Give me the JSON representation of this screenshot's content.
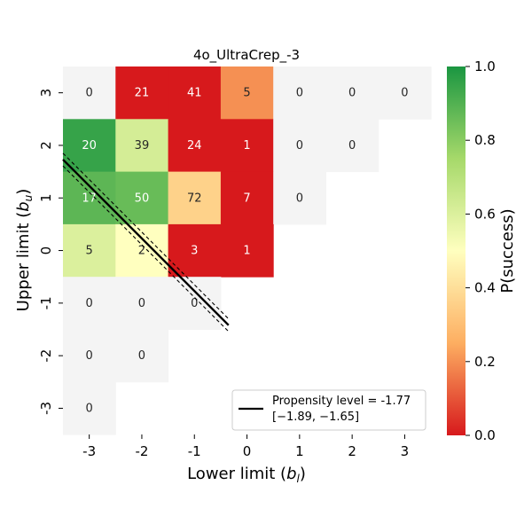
{
  "chart_data": {
    "type": "heatmap",
    "title": "4o_UltraCrep_-3",
    "xlabel": "Lower limit (b_l)",
    "ylabel": "Upper limit (b_u)",
    "x_ticks": [
      "-3",
      "-2",
      "-1",
      "0",
      "1",
      "2",
      "3"
    ],
    "y_ticks": [
      "3",
      "2",
      "1",
      "0",
      "-1",
      "-2",
      "-3"
    ],
    "x_values": [
      -3,
      -2,
      -1,
      0,
      1,
      2,
      3
    ],
    "y_values": [
      3,
      2,
      1,
      0,
      -1,
      -2,
      -3
    ],
    "cells": [
      {
        "x": -3,
        "y": 3,
        "count": "0",
        "p": null
      },
      {
        "x": -2,
        "y": 3,
        "count": "21",
        "p": 0.0
      },
      {
        "x": -1,
        "y": 3,
        "count": "41",
        "p": 0.0
      },
      {
        "x": 0,
        "y": 3,
        "count": "5",
        "p": 0.2
      },
      {
        "x": 1,
        "y": 3,
        "count": "0",
        "p": null
      },
      {
        "x": 2,
        "y": 3,
        "count": "0",
        "p": null
      },
      {
        "x": 3,
        "y": 3,
        "count": "0",
        "p": null
      },
      {
        "x": -3,
        "y": 2,
        "count": "20",
        "p": 0.95
      },
      {
        "x": -2,
        "y": 2,
        "count": "39",
        "p": 0.62
      },
      {
        "x": -1,
        "y": 2,
        "count": "24",
        "p": 0.0
      },
      {
        "x": 0,
        "y": 2,
        "count": "1",
        "p": 0.0
      },
      {
        "x": 1,
        "y": 2,
        "count": "0",
        "p": null
      },
      {
        "x": 2,
        "y": 2,
        "count": "0",
        "p": null
      },
      {
        "x": -3,
        "y": 1,
        "count": "17",
        "p": 0.88
      },
      {
        "x": -2,
        "y": 1,
        "count": "50",
        "p": 0.86
      },
      {
        "x": -1,
        "y": 1,
        "count": "72",
        "p": 0.36
      },
      {
        "x": 0,
        "y": 1,
        "count": "7",
        "p": 0.0
      },
      {
        "x": 1,
        "y": 1,
        "count": "0",
        "p": null
      },
      {
        "x": -3,
        "y": 0,
        "count": "5",
        "p": 0.6
      },
      {
        "x": -2,
        "y": 0,
        "count": "2",
        "p": 0.5
      },
      {
        "x": -1,
        "y": 0,
        "count": "3",
        "p": 0.0
      },
      {
        "x": 0,
        "y": 0,
        "count": "1",
        "p": 0.0
      },
      {
        "x": -3,
        "y": -1,
        "count": "0",
        "p": null
      },
      {
        "x": -2,
        "y": -1,
        "count": "0",
        "p": null
      },
      {
        "x": -1,
        "y": -1,
        "count": "0",
        "p": null
      },
      {
        "x": -3,
        "y": -2,
        "count": "0",
        "p": null
      },
      {
        "x": -2,
        "y": -2,
        "count": "0",
        "p": null
      },
      {
        "x": -3,
        "y": -3,
        "count": "0",
        "p": null
      }
    ],
    "line": {
      "label": "Propensity level = -1.77",
      "ci_label": "[−1.89, −1.65]",
      "x_range": [
        -3.5,
        -0.35
      ],
      "center": -1.77,
      "ci": [
        -1.89,
        -1.65
      ]
    },
    "colorbar": {
      "label": "P(success)",
      "ticks": [
        "0.0",
        "0.2",
        "0.4",
        "0.6",
        "0.8",
        "1.0"
      ],
      "range": [
        0,
        1
      ],
      "colormap": [
        "#d7191c",
        "#fdae61",
        "#ffffbf",
        "#a6d96a",
        "#1a9641"
      ]
    },
    "empty_color": "#f4f4f4",
    "legend_position": "lower-right"
  }
}
